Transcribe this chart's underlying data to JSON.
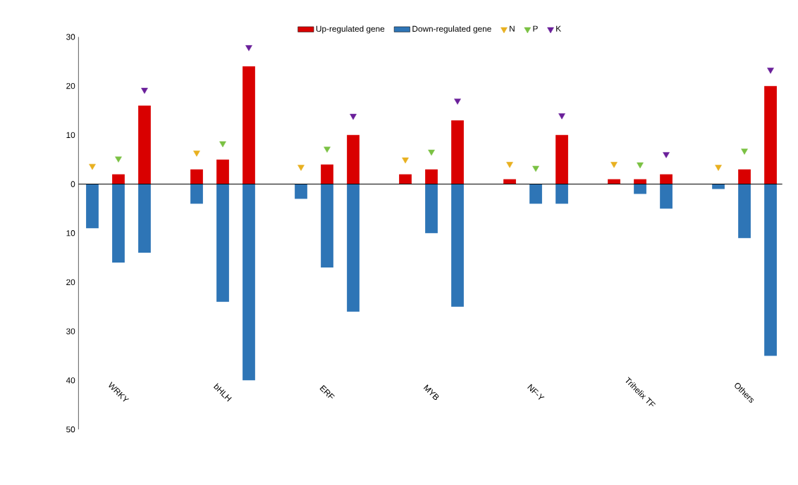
{
  "chart_data": {
    "type": "bar",
    "categories": [
      null,
      "WRKY",
      null,
      null,
      null,
      "bHLH",
      null,
      null,
      null,
      "ERF",
      null,
      null,
      null,
      "MYB",
      null,
      null,
      null,
      "NF-Y",
      null,
      null,
      null,
      "Trihelix  TF",
      null,
      null,
      null,
      "Others",
      null
    ],
    "series": [
      {
        "name": "Up-regulated gene",
        "color": "#d90000",
        "values": [
          0,
          2,
          16,
          null,
          3,
          5,
          24,
          null,
          0,
          4,
          10,
          null,
          2,
          3,
          13,
          null,
          1,
          0,
          10,
          null,
          1,
          1,
          2,
          null,
          0,
          3,
          20
        ]
      },
      {
        "name": "Down-regulated gene",
        "color": "#2e75b6",
        "values": [
          -9,
          -16,
          -14,
          null,
          -4,
          -24,
          -40,
          null,
          -3,
          -17,
          -26,
          null,
          0,
          -10,
          -25,
          null,
          0,
          -4,
          -4,
          null,
          0,
          -2,
          -5,
          null,
          -1,
          -11,
          -35
        ]
      },
      {
        "name": "N",
        "type": "scatter",
        "marker": "triangle",
        "color": "#e8b020",
        "values": [
          3.7,
          null,
          null,
          null,
          6.4,
          null,
          null,
          null,
          3.5,
          null,
          null,
          null,
          5,
          null,
          null,
          null,
          4.1,
          null,
          null,
          null,
          4.1,
          null,
          null,
          null,
          3.5,
          null,
          null
        ]
      },
      {
        "name": "P",
        "type": "scatter",
        "marker": "triangle",
        "color": "#7ac143",
        "values": [
          null,
          5.2,
          null,
          null,
          null,
          8.3,
          null,
          null,
          null,
          7.2,
          null,
          null,
          null,
          6.6,
          null,
          null,
          null,
          3.3,
          null,
          null,
          null,
          4,
          null,
          null,
          null,
          6.8,
          null
        ]
      },
      {
        "name": "K",
        "type": "scatter",
        "marker": "triangle",
        "color": "#6a1f9a",
        "values": [
          null,
          null,
          19.2,
          null,
          null,
          null,
          27.9,
          null,
          null,
          null,
          13.9,
          null,
          null,
          null,
          17,
          null,
          null,
          null,
          14,
          null,
          null,
          null,
          6.1,
          null,
          null,
          null,
          23.3
        ]
      }
    ],
    "ylim": [
      -50,
      30
    ],
    "yticks": [
      30,
      20,
      10,
      0,
      {
        "value": -10,
        "label": "10"
      },
      {
        "value": -20,
        "label": "20"
      },
      {
        "value": -30,
        "label": "30"
      },
      {
        "value": -40,
        "label": "40"
      },
      {
        "value": -50,
        "label": "50"
      }
    ],
    "ref_lines": [
      {
        "axis": "y",
        "value": 0
      }
    ],
    "legend": "top",
    "stacked": true,
    "grid": false
  }
}
